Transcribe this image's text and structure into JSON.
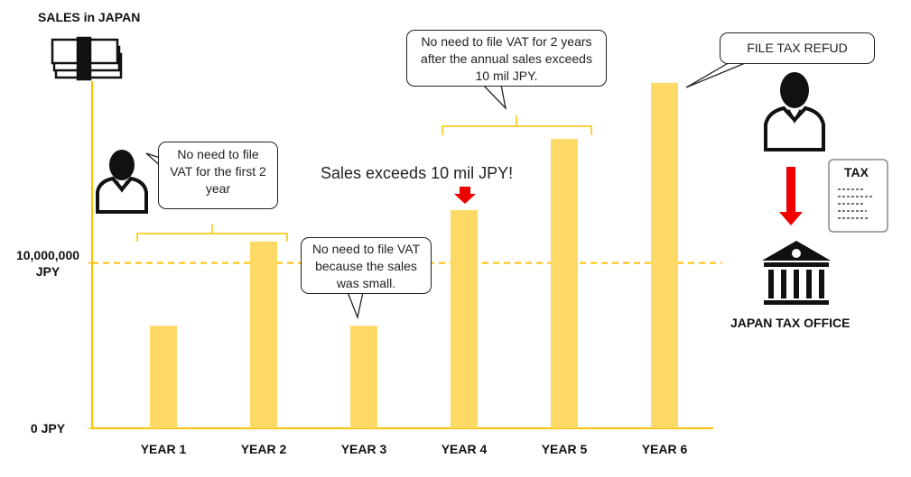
{
  "chart_data": {
    "type": "bar",
    "title": "SALES in JAPAN",
    "categories": [
      "YEAR 1",
      "YEAR 2",
      "YEAR 3",
      "YEAR 4",
      "YEAR 5",
      "YEAR 6"
    ],
    "values": [
      6200000,
      11300000,
      6200000,
      13200000,
      17500000,
      20900000
    ],
    "color": "#ffd966",
    "axis_color": "#ffc000",
    "ylim": [
      0,
      21000000
    ],
    "yticks": [
      {
        "value": 0,
        "label": "0 JPY"
      },
      {
        "value": 10000000,
        "label": "10,000,000 JPY"
      }
    ],
    "threshold": 10000000,
    "annotations": {
      "first_years": "No need to file VAT for the first 2 year",
      "small_sales": "No need to file VAT because the sales was small.",
      "exceeds": "Sales exceeds 10 mil JPY!",
      "two_years_after": "No need to file VAT for 2 years after the annual sales exceeds 10 mil JPY.",
      "refund": "FILE TAX REFUD",
      "tax_doc": "TAX",
      "office": "JAPAN TAX OFFICE"
    }
  }
}
